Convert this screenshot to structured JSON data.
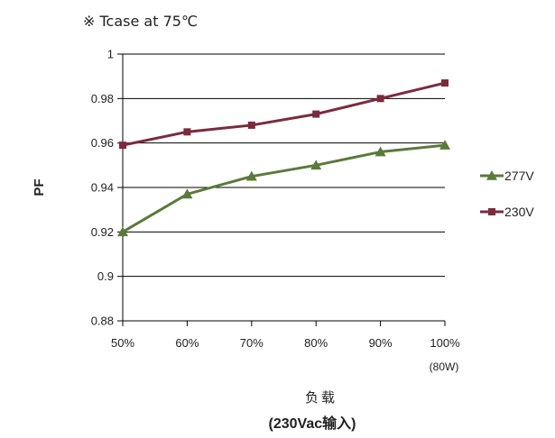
{
  "chart_data": {
    "type": "line",
    "annotation": "※ Tcase at 75℃",
    "ylabel": "PF",
    "xlabel_line1": "负载",
    "xlabel_line2": "(230Vac输入)",
    "categories": [
      "50%",
      "60%",
      "70%",
      "80%",
      "90%",
      "100%"
    ],
    "category_note": "(80W)",
    "ylim": [
      0.88,
      1
    ],
    "yticks": [
      "1",
      "0.98",
      "0.96",
      "0.94",
      "0.92",
      "0.9",
      "0.88"
    ],
    "grid": true,
    "legend_position": "right",
    "series": [
      {
        "name": "277V",
        "color": "#5b7a3a",
        "marker": "triangle",
        "values": [
          0.92,
          0.937,
          0.945,
          0.95,
          0.956,
          0.959
        ]
      },
      {
        "name": "230V",
        "color": "#7b2b3d",
        "marker": "square",
        "values": [
          0.959,
          0.965,
          0.968,
          0.973,
          0.98,
          0.987
        ]
      }
    ]
  }
}
